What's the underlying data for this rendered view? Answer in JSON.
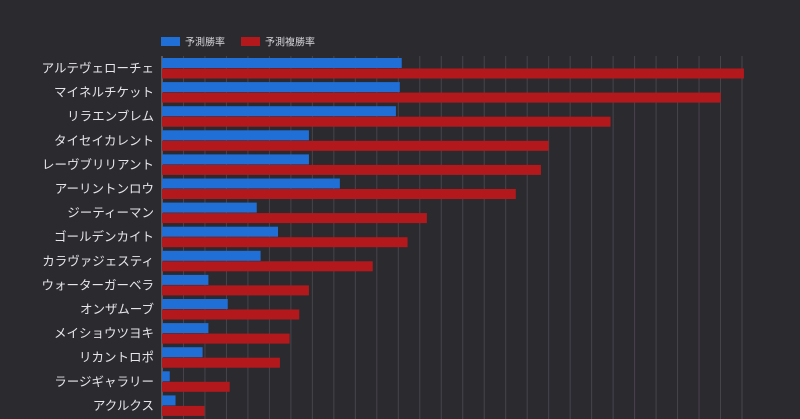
{
  "chart_data": {
    "type": "bar",
    "orientation": "horizontal",
    "title": "",
    "xlabel": "",
    "ylabel": "",
    "grid": true,
    "legend_position": "top-left",
    "xlim": [
      0,
      30
    ],
    "categories": [
      "アルテヴェローチェ",
      "マイネルチケット",
      "リラエンブレム",
      "タイセイカレント",
      "レーヴブリリアント",
      "アーリントンロウ",
      "ジーティーマン",
      "ゴールデンカイト",
      "カラヴァジェスティ",
      "ウォーターガーベラ",
      "オンザムーブ",
      "メイショウツヨキ",
      "リカントロポ",
      "ラージギャラリー",
      "アクルクス"
    ],
    "series": [
      {
        "name": "予測勝率",
        "color": "#1f6fd6",
        "values": [
          12.4,
          12.3,
          12.1,
          7.6,
          7.6,
          9.2,
          4.9,
          6.0,
          5.1,
          2.4,
          3.4,
          2.4,
          2.1,
          0.4,
          0.7
        ]
      },
      {
        "name": "予測複勝率",
        "color": "#b3191c",
        "values": [
          30.1,
          28.9,
          23.2,
          20.0,
          19.6,
          18.3,
          13.7,
          12.7,
          10.9,
          7.6,
          7.1,
          6.6,
          6.1,
          3.5,
          2.2
        ]
      }
    ]
  }
}
